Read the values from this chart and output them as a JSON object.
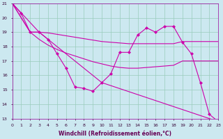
{
  "xlabel": "Windchill (Refroidissement éolien,°C)",
  "xlim": [
    0,
    23
  ],
  "ylim": [
    13,
    21
  ],
  "yticks": [
    13,
    14,
    15,
    16,
    17,
    18,
    19,
    20,
    21
  ],
  "xticks": [
    0,
    1,
    2,
    3,
    4,
    5,
    6,
    7,
    8,
    9,
    10,
    11,
    12,
    13,
    14,
    15,
    16,
    17,
    18,
    19,
    20,
    21,
    22,
    23
  ],
  "bg_color": "#cce8f0",
  "line_color": "#cc00aa",
  "grid_color": "#99ccbb",
  "series_markers": {
    "x": [
      0,
      1,
      2,
      3,
      4,
      5,
      6,
      7,
      8,
      9,
      10,
      11,
      12,
      13,
      14,
      15,
      16,
      17,
      18,
      19,
      20,
      21,
      22,
      23
    ],
    "y": [
      21.0,
      20.3,
      19.0,
      19.0,
      18.5,
      17.5,
      16.5,
      15.2,
      15.1,
      14.9,
      15.5,
      16.1,
      17.6,
      17.6,
      18.8,
      19.3,
      19.0,
      19.4,
      19.4,
      18.3,
      17.5,
      15.5,
      13.3,
      12.8
    ]
  },
  "series_diag": {
    "x": [
      0,
      3,
      10,
      23
    ],
    "y": [
      21.0,
      19.0,
      15.5,
      12.8
    ]
  },
  "series_upper": {
    "x": [
      0,
      2,
      3,
      4,
      5,
      6,
      7,
      8,
      9,
      10,
      11,
      12,
      13,
      14,
      15,
      16,
      17,
      18,
      19,
      20,
      21,
      22,
      23
    ],
    "y": [
      21.0,
      19.0,
      19.0,
      18.95,
      18.85,
      18.75,
      18.65,
      18.55,
      18.45,
      18.35,
      18.3,
      18.25,
      18.2,
      18.2,
      18.2,
      18.2,
      18.2,
      18.2,
      18.35,
      18.35,
      18.35,
      18.35,
      18.35
    ]
  },
  "series_lower": {
    "x": [
      0,
      2,
      3,
      4,
      5,
      6,
      7,
      8,
      9,
      10,
      11,
      12,
      13,
      14,
      15,
      16,
      17,
      18,
      19,
      20,
      21,
      22,
      23
    ],
    "y": [
      21.0,
      19.0,
      18.5,
      18.1,
      17.8,
      17.55,
      17.35,
      17.15,
      16.95,
      16.8,
      16.65,
      16.55,
      16.5,
      16.5,
      16.55,
      16.6,
      16.65,
      16.7,
      17.0,
      17.0,
      17.0,
      17.0,
      17.0
    ]
  }
}
